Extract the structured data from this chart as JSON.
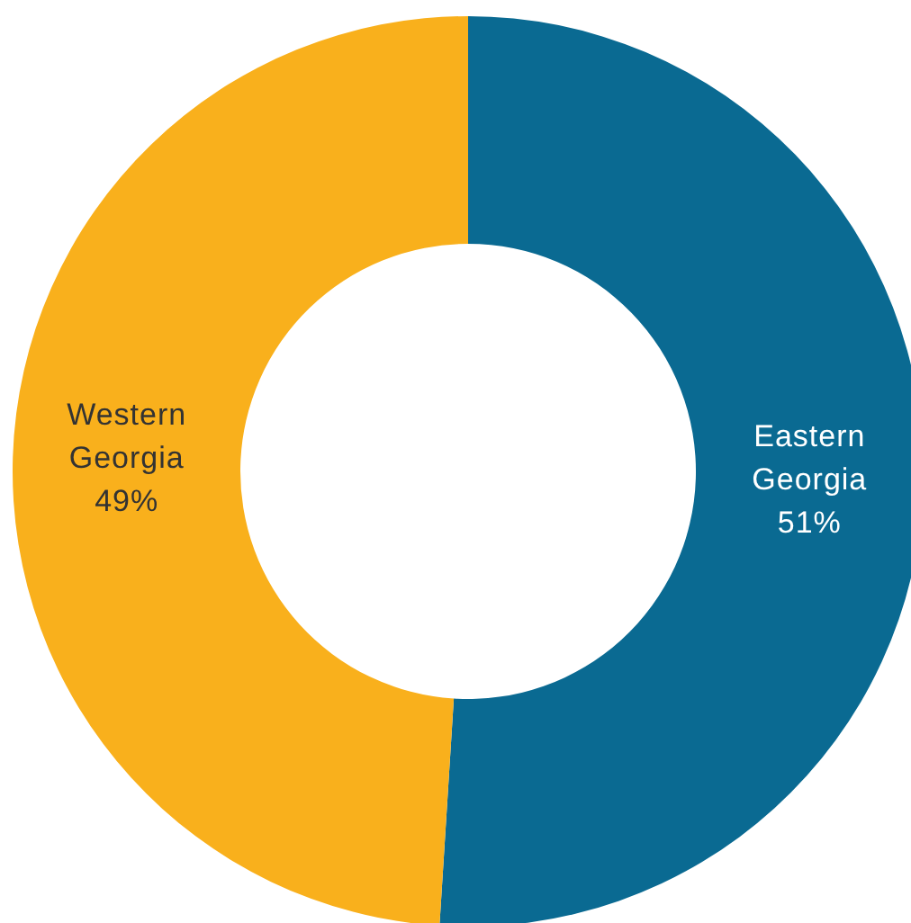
{
  "chart_data": {
    "type": "donut",
    "categories": [
      "Eastern Georgia",
      "Western Georgia"
    ],
    "values": [
      51,
      49
    ],
    "colors": [
      "#0a6a92",
      "#f9b01c"
    ],
    "value_labels": [
      "51%",
      "49%"
    ],
    "legend": false
  }
}
